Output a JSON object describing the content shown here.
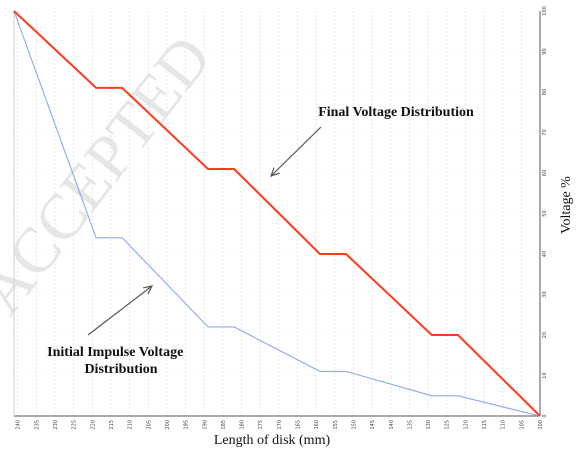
{
  "chart_data": {
    "type": "line",
    "xlabel": "Length of disk (mm)",
    "ylabel": "Voltage %",
    "x_ticks": [
      240,
      235,
      230,
      225,
      220,
      215,
      210,
      205,
      200,
      195,
      190,
      185,
      180,
      175,
      170,
      165,
      160,
      155,
      150,
      145,
      140,
      135,
      130,
      125,
      120,
      115,
      110,
      105,
      100
    ],
    "y_ticks": [
      0,
      10,
      20,
      30,
      40,
      50,
      60,
      70,
      80,
      90,
      100
    ],
    "xlim": [
      241,
      100
    ],
    "ylim": [
      0,
      100
    ],
    "y_axis_position": "right",
    "grid": "vertical dashed",
    "series": [
      {
        "name": "Final Voltage Distribution",
        "color": "#ff3b1f",
        "x": [
          241,
          219,
          212,
          189,
          182,
          159,
          152,
          129,
          122,
          100
        ],
        "y": [
          100,
          81,
          81,
          61,
          61,
          40,
          40,
          20,
          20,
          0
        ]
      },
      {
        "name": "Initial Impulse Voltage Distribution",
        "color": "#8ea8f0",
        "x": [
          241,
          219,
          212,
          189,
          182,
          159,
          152,
          129,
          122,
          100
        ],
        "y": [
          100,
          44,
          44,
          22,
          22,
          11,
          11,
          5,
          5,
          0
        ]
      }
    ],
    "annotations": [
      {
        "text": "Final Voltage Distribution",
        "lines": [
          "Final Voltage Distribution"
        ]
      },
      {
        "text": "Initial Impulse Voltage Distribution",
        "lines": [
          "Initial Impulse Voltage",
          "Distribution"
        ]
      }
    ],
    "watermark": "ACCEPTED"
  }
}
